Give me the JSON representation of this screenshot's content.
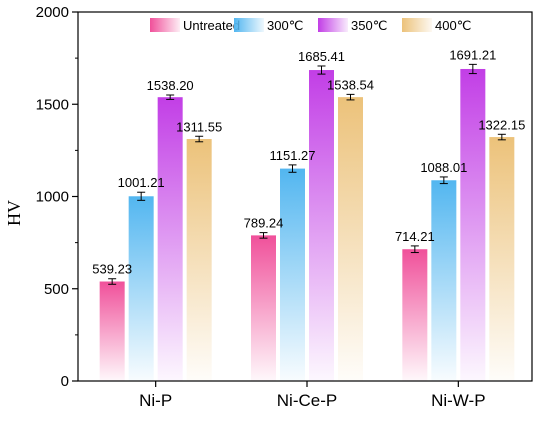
{
  "chart_data": {
    "type": "bar",
    "categories": [
      "Ni-P",
      "Ni-Ce-P",
      "Ni-W-P"
    ],
    "series": [
      {
        "name": "Untreated",
        "color": "#f0509a",
        "values": [
          539.23,
          789.24,
          714.21
        ],
        "errors": [
          15,
          15,
          18
        ]
      },
      {
        "name": "300℃",
        "color": "#52b6f0",
        "values": [
          1001.21,
          1151.27,
          1088.01
        ],
        "errors": [
          22,
          20,
          18
        ]
      },
      {
        "name": "350℃",
        "color": "#c23ee6",
        "values": [
          1538.2,
          1685.41,
          1691.21
        ],
        "errors": [
          12,
          22,
          25
        ]
      },
      {
        "name": "400℃",
        "color": "#ecc27a",
        "values": [
          1311.55,
          1538.54,
          1322.15
        ],
        "errors": [
          15,
          15,
          15
        ]
      }
    ],
    "data_labels": [
      [
        "539.23",
        "789.24",
        "714.21"
      ],
      [
        "1001.21",
        "1151.27",
        "1088.01"
      ],
      [
        "1538.20",
        "1685.41",
        "1691.21"
      ],
      [
        "1311.55",
        "1538.54",
        "1322.15"
      ]
    ],
    "ylabel": "HV",
    "xlabel": "",
    "ylim": [
      0,
      2000
    ],
    "yticks": [
      0,
      500,
      1000,
      1500,
      2000
    ],
    "grid": false,
    "legend_position": "top-center"
  }
}
